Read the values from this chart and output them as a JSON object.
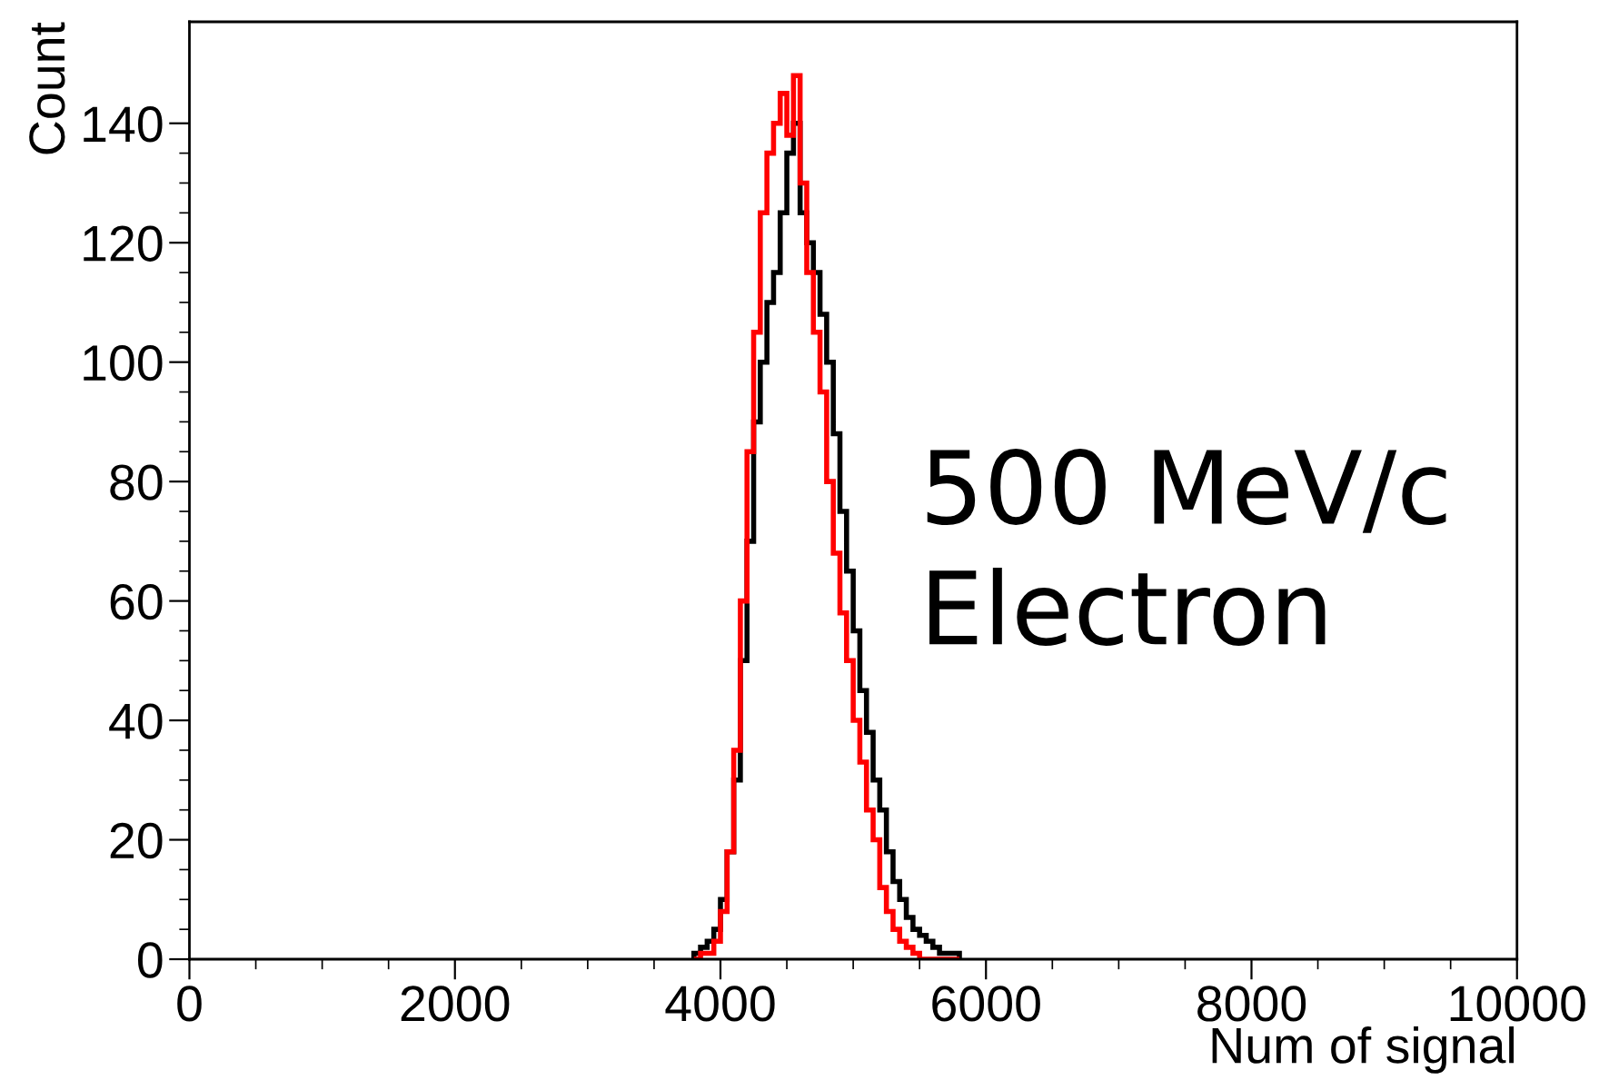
{
  "chart_data": {
    "type": "histogram",
    "xlabel": "Num of signal",
    "ylabel": "Count",
    "annotations": [
      "500 MeV/c\nElectron"
    ],
    "bins": [
      3800,
      3850,
      3900,
      3950,
      4000,
      4050,
      4100,
      4150,
      4200,
      4250,
      4300,
      4350,
      4400,
      4450,
      4500,
      4550,
      4600,
      4650,
      4700,
      4750,
      4800,
      4850,
      4900,
      4950,
      5000,
      5050,
      5100,
      5150,
      5200,
      5250,
      5300,
      5350,
      5400,
      5450,
      5500,
      5550,
      5600,
      5650,
      5700,
      5750,
      5800
    ],
    "series": [
      {
        "color": "#000000",
        "values": [
          1,
          2,
          3,
          5,
          10,
          18,
          30,
          50,
          70,
          90,
          100,
          110,
          115,
          125,
          135,
          140,
          125,
          120,
          115,
          108,
          100,
          88,
          75,
          65,
          55,
          45,
          38,
          30,
          25,
          18,
          13,
          10,
          7,
          5,
          4,
          3,
          2,
          1,
          1,
          1
        ]
      },
      {
        "color": "#ff0000",
        "values": [
          0,
          1,
          1,
          3,
          8,
          18,
          35,
          60,
          85,
          105,
          125,
          135,
          140,
          145,
          138,
          148,
          130,
          115,
          105,
          95,
          80,
          68,
          58,
          50,
          40,
          33,
          25,
          20,
          12,
          8,
          5,
          3,
          2,
          1,
          0,
          0,
          0,
          0,
          0,
          0
        ]
      }
    ],
    "xlim": [
      0,
      10000
    ],
    "xticks": [
      0,
      2000,
      4000,
      6000,
      8000,
      10000
    ],
    "ylim": [
      0,
      157
    ],
    "yticks": [
      0,
      20,
      40,
      60,
      80,
      100,
      120,
      140
    ],
    "grid": false,
    "legend": false
  }
}
